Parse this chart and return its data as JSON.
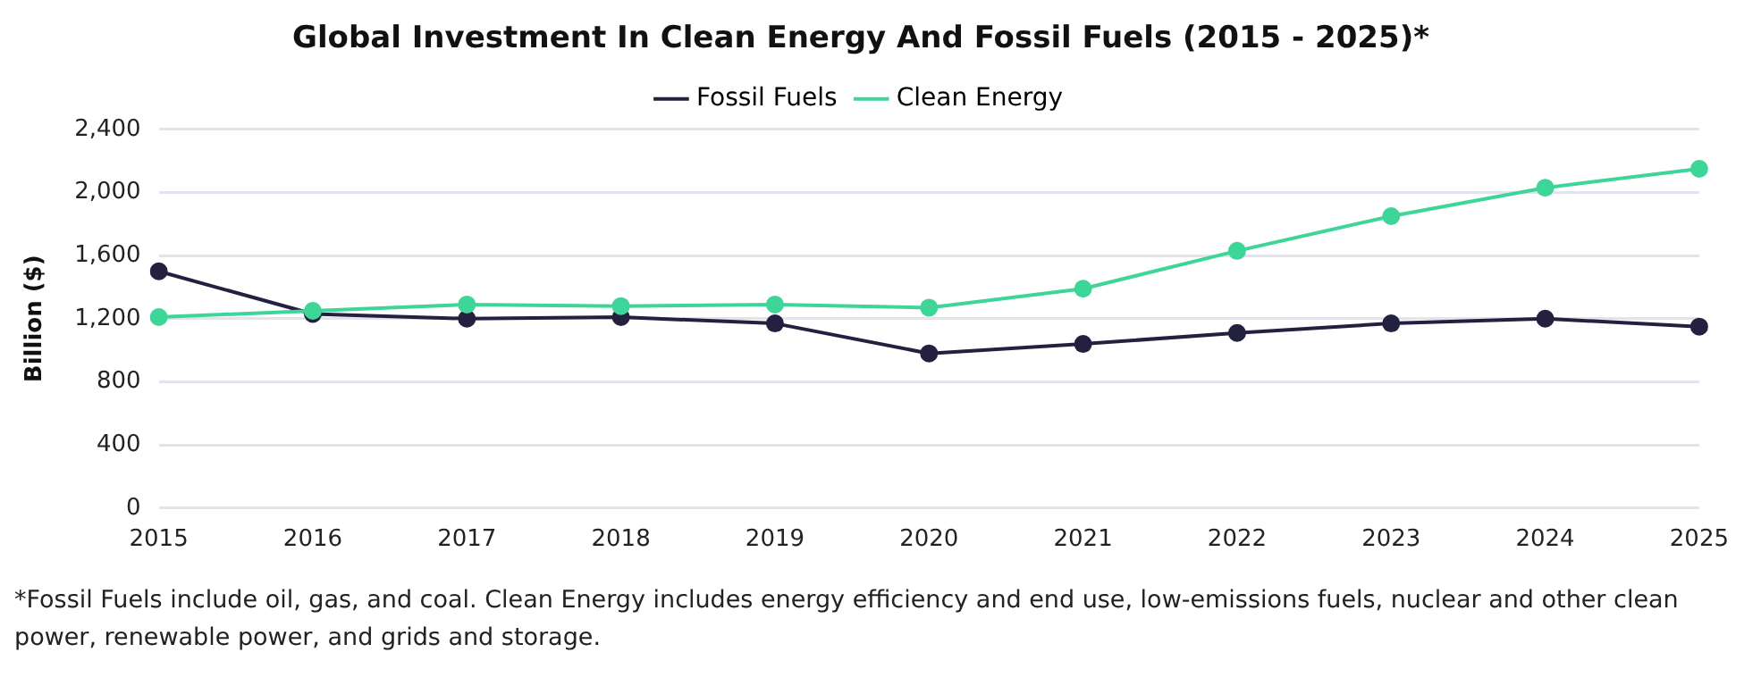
{
  "chart_data": {
    "type": "line",
    "title": "Global Investment In Clean Energy And Fossil Fuels (2015 - 2025)*",
    "ylabel": "Billion ($)",
    "categories": [
      "2015",
      "2016",
      "2017",
      "2018",
      "2019",
      "2020",
      "2021",
      "2022",
      "2023",
      "2024",
      "2025"
    ],
    "series": [
      {
        "name": "Fossil Fuels",
        "color": "#23213f",
        "values": [
          1500,
          1230,
          1200,
          1210,
          1170,
          980,
          1040,
          1110,
          1170,
          1200,
          1150
        ]
      },
      {
        "name": "Clean Energy",
        "color": "#3ed598",
        "values": [
          1210,
          1250,
          1290,
          1280,
          1290,
          1270,
          1390,
          1630,
          1850,
          2030,
          2150
        ]
      }
    ],
    "ylim": [
      0,
      2400
    ],
    "yticks": [
      {
        "value": 0,
        "label": "0"
      },
      {
        "value": 400,
        "label": "400"
      },
      {
        "value": 800,
        "label": "800"
      },
      {
        "value": 1200,
        "label": "1,200"
      },
      {
        "value": 1600,
        "label": "1,600"
      },
      {
        "value": 2000,
        "label": "2,000"
      },
      {
        "value": 2400,
        "label": "2,400"
      }
    ],
    "grid": "y",
    "legend": "top",
    "marker": "circle",
    "line_style": "solid",
    "annotations": [
      "*Fossil Fuels include oil, gas, and coal. Clean Energy includes energy efficiency and end use, low-emissions fuels, nuclear and other clean power, renewable power, and grids and storage."
    ]
  }
}
